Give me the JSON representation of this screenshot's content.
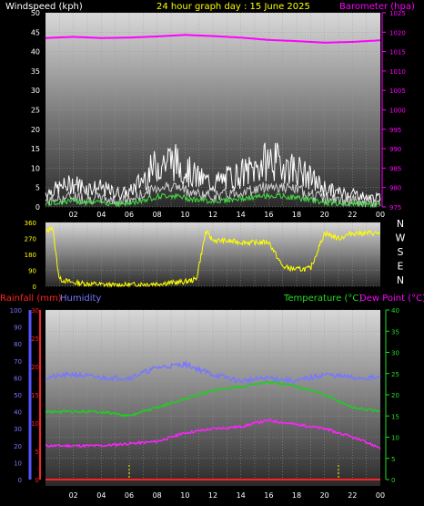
{
  "header": {
    "left_label": "Windspeed (kph)",
    "center_label": "24 hour graph day : 15 June 2025",
    "right_label": "Barometer (hpa)"
  },
  "bottom_header": {
    "rain_label": "Rainfall (mm)",
    "humidity_label": "Humidity",
    "temp_label": "Temperature (°C)",
    "dew_label": "Dew Point (°C)"
  },
  "colors": {
    "background": "#000000",
    "wind": "#ffffff",
    "gust": "#cccccc",
    "wind_avg": "#44dd44",
    "barometer": "#ff00ff",
    "direction": "#ffff00",
    "temperature": "#22cc22",
    "dewpoint": "#ff22ff",
    "humidity": "#7777ff",
    "rainfall": "#ff2222",
    "rain_axis": "#ff2222",
    "humidity_axis": "#5555ff"
  },
  "x_ticks": [
    "02",
    "04",
    "06",
    "08",
    "10",
    "12",
    "14",
    "16",
    "18",
    "20",
    "22",
    "00"
  ],
  "compass": [
    "N",
    "W",
    "S",
    "E",
    "N"
  ],
  "chart_data": [
    {
      "type": "line",
      "name": "wind",
      "x_range": [
        0,
        24
      ],
      "left_ylim": [
        0,
        50
      ],
      "left_ticks": [
        0,
        5,
        10,
        15,
        20,
        25,
        30,
        35,
        40,
        45,
        50
      ],
      "right_ylim": [
        975,
        1025
      ],
      "right_ticks": [
        975,
        980,
        985,
        990,
        995,
        1000,
        1005,
        1010,
        1015,
        1020,
        1025
      ],
      "series": [
        {
          "name": "Windspeed (kph)",
          "x": [
            0,
            1,
            2,
            3,
            4,
            5,
            6,
            7,
            8,
            9,
            10,
            11,
            12,
            13,
            14,
            15,
            16,
            17,
            18,
            19,
            20,
            21,
            22,
            23,
            24
          ],
          "values": [
            3,
            4,
            5,
            4,
            4,
            3,
            3,
            6,
            9,
            10,
            8,
            6,
            5,
            6,
            7,
            8,
            10,
            9,
            8,
            6,
            4,
            3,
            3,
            2,
            2
          ]
        },
        {
          "name": "Barometer (hpa)",
          "axis": "right",
          "x": [
            0,
            2,
            4,
            6,
            8,
            10,
            12,
            14,
            16,
            18,
            20,
            22,
            24
          ],
          "values": [
            1018.5,
            1018.8,
            1018.5,
            1018.6,
            1018.9,
            1019.3,
            1019.0,
            1018.6,
            1018.0,
            1017.7,
            1017.3,
            1017.5,
            1017.9
          ]
        }
      ]
    },
    {
      "type": "scatter",
      "name": "wind_direction",
      "x_range": [
        0,
        24
      ],
      "ylim": [
        0,
        360
      ],
      "y_ticks": [
        0,
        90,
        180,
        270,
        360
      ],
      "series": [
        {
          "name": "Direction",
          "x": [
            0,
            0.5,
            0.8,
            1,
            2,
            3,
            4,
            5,
            6,
            7,
            8,
            9,
            10,
            10.8,
            11.5,
            12,
            13,
            14,
            15,
            16,
            17,
            18,
            19,
            20,
            21,
            22,
            23,
            24
          ],
          "values": [
            300,
            340,
            150,
            40,
            20,
            15,
            10,
            5,
            8,
            12,
            15,
            20,
            25,
            40,
            310,
            260,
            255,
            250,
            245,
            250,
            110,
            95,
            100,
            300,
            270,
            300,
            300,
            300
          ]
        }
      ]
    },
    {
      "type": "line",
      "name": "temp_humidity",
      "x_range": [
        0,
        24
      ],
      "rain_ylim": [
        0,
        30
      ],
      "rain_ticks": [
        0,
        5,
        10,
        15,
        20,
        25,
        30
      ],
      "humidity_ylim": [
        0,
        100
      ],
      "humidity_ticks": [
        0,
        10,
        20,
        30,
        40,
        50,
        60,
        70,
        80,
        90,
        100
      ],
      "temp_ylim": [
        0,
        40
      ],
      "temp_ticks": [
        0,
        5,
        10,
        15,
        20,
        25,
        30,
        35,
        40
      ],
      "series": [
        {
          "name": "Temperature (°C)",
          "x": [
            0,
            2,
            4,
            6,
            8,
            10,
            12,
            14,
            16,
            18,
            20,
            22,
            24
          ],
          "values": [
            16,
            16,
            16,
            15,
            17,
            19,
            21,
            22,
            23,
            22,
            20,
            17,
            16
          ]
        },
        {
          "name": "Dew Point (°C)",
          "x": [
            0,
            2,
            4,
            6,
            8,
            10,
            12,
            14,
            16,
            18,
            20,
            22,
            24
          ],
          "values": [
            8,
            8,
            8,
            8.5,
            9,
            11,
            12,
            12.5,
            14,
            13,
            12,
            10,
            7.5
          ]
        },
        {
          "name": "Humidity",
          "x": [
            0,
            2,
            4,
            6,
            8,
            10,
            12,
            14,
            16,
            18,
            20,
            22,
            24
          ],
          "values": [
            60,
            62,
            60,
            60,
            66,
            68,
            62,
            58,
            60,
            58,
            62,
            60,
            60
          ]
        },
        {
          "name": "Rainfall (mm)",
          "x": [
            0,
            24
          ],
          "values": [
            0,
            0
          ]
        }
      ]
    }
  ]
}
